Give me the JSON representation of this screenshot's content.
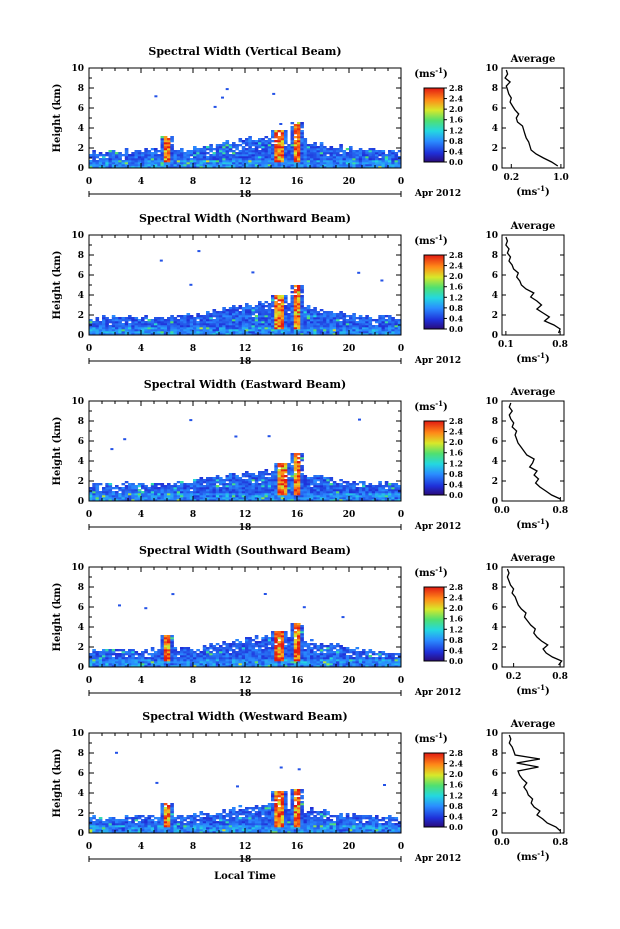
{
  "chart_data": [
    {
      "type": "heatmap",
      "title": "Spectral Width (Vertical Beam)",
      "ylabel": "Height (km)",
      "x_ticks": [
        "0",
        "4",
        "8",
        "12",
        "16",
        "20",
        "0"
      ],
      "y_ticks": [
        "0",
        "2",
        "4",
        "6",
        "8",
        "10"
      ],
      "xlim": [
        0,
        24
      ],
      "ylim": [
        0,
        10
      ],
      "date_day": "18",
      "date_month": "Apr 2012",
      "colorbar": {
        "unit": "(ms",
        "unit_exp": "-1",
        "unit_close": ")",
        "ticks": [
          "0.0",
          "0.4",
          "0.8",
          "1.2",
          "1.6",
          "2.0",
          "2.4",
          "2.8"
        ],
        "range": [
          0,
          2.8
        ]
      },
      "average": {
        "title": "Average",
        "xlabel": "(ms",
        "xlabel_exp": "-1",
        "xlabel_close": ")",
        "x_ticks": [
          "0.2",
          "1.0"
        ],
        "y_ticks": [
          "0",
          "2",
          "4",
          "6",
          "8",
          "10"
        ],
        "xlim": [
          0.05,
          1.05
        ],
        "ylim": [
          0,
          10
        ],
        "height": [
          0.2,
          0.6,
          1.0,
          1.4,
          1.8,
          2.2,
          2.6,
          3.0,
          3.4,
          3.8,
          4.2,
          4.6,
          5.0,
          5.4,
          5.8,
          6.2,
          6.6,
          7.0,
          7.4,
          7.8,
          8.2,
          8.6,
          9.0,
          9.4,
          9.8
        ],
        "value": [
          0.95,
          0.85,
          0.72,
          0.6,
          0.52,
          0.5,
          0.48,
          0.44,
          0.42,
          0.4,
          0.38,
          0.3,
          0.28,
          0.32,
          0.26,
          0.22,
          0.18,
          0.2,
          0.16,
          0.14,
          0.12,
          0.18,
          0.1,
          0.14,
          0.12
        ]
      },
      "field": {
        "top_km": 3.0,
        "events": [
          [
            6,
            3.2
          ],
          [
            14.6,
            3.8
          ],
          [
            16,
            4.6
          ]
        ]
      }
    },
    {
      "type": "heatmap",
      "title": "Spectral Width (Northward Beam)",
      "ylabel": "Height (km)",
      "x_ticks": [
        "0",
        "4",
        "8",
        "12",
        "16",
        "20",
        "0"
      ],
      "y_ticks": [
        "0",
        "2",
        "4",
        "6",
        "8",
        "10"
      ],
      "xlim": [
        0,
        24
      ],
      "ylim": [
        0,
        10
      ],
      "date_day": "18",
      "date_month": "Apr 2012",
      "colorbar": {
        "unit": "(ms",
        "unit_exp": "-1",
        "unit_close": ")",
        "ticks": [
          "0.0",
          "0.4",
          "0.8",
          "1.2",
          "1.6",
          "2.0",
          "2.4",
          "2.8"
        ],
        "range": [
          0,
          2.8
        ]
      },
      "average": {
        "title": "Average",
        "xlabel": "(ms",
        "xlabel_exp": "-1",
        "xlabel_close": ")",
        "x_ticks": [
          "0.1",
          "0.8"
        ],
        "y_ticks": [
          "0",
          "2",
          "4",
          "6",
          "8",
          "10"
        ],
        "xlim": [
          0.05,
          0.85
        ],
        "ylim": [
          0,
          10
        ],
        "height": [
          0.2,
          0.6,
          1.0,
          1.4,
          1.8,
          2.2,
          2.6,
          3.0,
          3.4,
          3.8,
          4.2,
          4.6,
          5.0,
          5.4,
          5.8,
          6.2,
          6.6,
          7.0,
          7.4,
          7.8,
          8.2,
          8.6,
          9.0,
          9.4,
          9.8
        ],
        "value": [
          0.78,
          0.8,
          0.72,
          0.6,
          0.66,
          0.58,
          0.5,
          0.56,
          0.5,
          0.42,
          0.46,
          0.36,
          0.3,
          0.28,
          0.24,
          0.26,
          0.2,
          0.18,
          0.14,
          0.16,
          0.12,
          0.14,
          0.1,
          0.12,
          0.1
        ]
      },
      "field": {
        "top_km": 3.2,
        "events": [
          [
            14.6,
            4.0
          ],
          [
            16,
            5.0
          ]
        ]
      }
    },
    {
      "type": "heatmap",
      "title": "Spectral Width (Eastward Beam)",
      "ylabel": "Height (km)",
      "x_ticks": [
        "0",
        "4",
        "8",
        "12",
        "16",
        "20",
        "0"
      ],
      "y_ticks": [
        "0",
        "2",
        "4",
        "6",
        "8",
        "10"
      ],
      "xlim": [
        0,
        24
      ],
      "ylim": [
        0,
        10
      ],
      "date_day": "18",
      "date_month": "Apr 2012",
      "colorbar": {
        "unit": "(ms",
        "unit_exp": "-1",
        "unit_close": ")",
        "ticks": [
          "0.0",
          "0.4",
          "0.8",
          "1.2",
          "1.6",
          "2.0",
          "2.4",
          "2.8"
        ],
        "range": [
          0,
          2.8
        ]
      },
      "average": {
        "title": "Average",
        "xlabel": "(ms",
        "xlabel_exp": "-1",
        "xlabel_close": ")",
        "x_ticks": [
          "0.0",
          "0.8"
        ],
        "y_ticks": [
          "0",
          "2",
          "4",
          "6",
          "8",
          "10"
        ],
        "xlim": [
          0.0,
          0.85
        ],
        "ylim": [
          0,
          10
        ],
        "height": [
          0.2,
          0.6,
          1.0,
          1.4,
          1.8,
          2.2,
          2.6,
          3.0,
          3.4,
          3.8,
          4.2,
          4.6,
          5.0,
          5.4,
          5.8,
          6.2,
          6.6,
          7.0,
          7.4,
          7.8,
          8.2,
          8.6,
          9.0,
          9.4,
          9.8
        ],
        "value": [
          0.8,
          0.68,
          0.6,
          0.52,
          0.46,
          0.5,
          0.44,
          0.48,
          0.38,
          0.42,
          0.44,
          0.34,
          0.3,
          0.26,
          0.22,
          0.2,
          0.18,
          0.2,
          0.14,
          0.16,
          0.12,
          0.1,
          0.14,
          0.1,
          0.12
        ]
      },
      "field": {
        "top_km": 3.0,
        "events": [
          [
            14.8,
            3.8
          ],
          [
            16,
            4.8
          ]
        ]
      }
    },
    {
      "type": "heatmap",
      "title": "Spectral Width (Southward Beam)",
      "ylabel": "Height (km)",
      "x_ticks": [
        "0",
        "4",
        "8",
        "12",
        "16",
        "20",
        "0"
      ],
      "y_ticks": [
        "0",
        "2",
        "4",
        "6",
        "8",
        "10"
      ],
      "xlim": [
        0,
        24
      ],
      "ylim": [
        0,
        10
      ],
      "date_day": "18",
      "date_month": "Apr 2012",
      "colorbar": {
        "unit": "(ms",
        "unit_exp": "-1",
        "unit_close": ")",
        "ticks": [
          "0.0",
          "0.4",
          "0.8",
          "1.2",
          "1.6",
          "2.0",
          "2.4",
          "2.8"
        ],
        "range": [
          0,
          2.8
        ]
      },
      "average": {
        "title": "Average",
        "xlabel": "(ms",
        "xlabel_exp": "-1",
        "xlabel_close": ")",
        "x_ticks": [
          "0.2",
          "0.8"
        ],
        "y_ticks": [
          "0",
          "2",
          "4",
          "6",
          "8",
          "10"
        ],
        "xlim": [
          0.05,
          0.85
        ],
        "ylim": [
          0,
          10
        ],
        "height": [
          0.2,
          0.6,
          1.0,
          1.4,
          1.8,
          2.2,
          2.6,
          3.0,
          3.4,
          3.8,
          4.2,
          4.6,
          5.0,
          5.4,
          5.8,
          6.2,
          6.6,
          7.0,
          7.4,
          7.8,
          8.2,
          8.6,
          9.0,
          9.4,
          9.8
        ],
        "value": [
          0.78,
          0.82,
          0.7,
          0.62,
          0.58,
          0.64,
          0.56,
          0.5,
          0.46,
          0.48,
          0.42,
          0.38,
          0.34,
          0.36,
          0.3,
          0.26,
          0.24,
          0.22,
          0.18,
          0.2,
          0.16,
          0.14,
          0.12,
          0.14,
          0.12
        ]
      },
      "field": {
        "top_km": 3.0,
        "events": [
          [
            6,
            3.2
          ],
          [
            14.6,
            3.6
          ],
          [
            16,
            4.4
          ]
        ]
      }
    },
    {
      "type": "heatmap",
      "title": "Spectral Width (Westward Beam)",
      "ylabel": "Height (km)",
      "xlabel": "Local Time",
      "x_ticks": [
        "0",
        "4",
        "8",
        "12",
        "16",
        "20",
        "0"
      ],
      "y_ticks": [
        "0",
        "2",
        "4",
        "6",
        "8",
        "10"
      ],
      "xlim": [
        0,
        24
      ],
      "ylim": [
        0,
        10
      ],
      "date_day": "18",
      "date_month": "Apr 2012",
      "colorbar": {
        "unit": "(ms",
        "unit_exp": "-1",
        "unit_close": ")",
        "ticks": [
          "0.0",
          "0.4",
          "0.8",
          "1.2",
          "1.6",
          "2.0",
          "2.4",
          "2.8"
        ],
        "range": [
          0,
          2.8
        ]
      },
      "average": {
        "title": "Average",
        "xlabel": "(ms",
        "xlabel_exp": "-1",
        "xlabel_close": ")",
        "x_ticks": [
          "0.0",
          "0.8"
        ],
        "y_ticks": [
          "0",
          "2",
          "4",
          "6",
          "8",
          "10"
        ],
        "xlim": [
          0.0,
          0.85
        ],
        "ylim": [
          0,
          10
        ],
        "height": [
          0.2,
          0.6,
          1.0,
          1.4,
          1.8,
          2.2,
          2.6,
          3.0,
          3.4,
          3.8,
          4.2,
          4.6,
          5.0,
          5.4,
          5.8,
          6.2,
          6.6,
          7.0,
          7.4,
          7.8,
          8.2,
          8.6,
          9.0,
          9.4,
          9.8
        ],
        "value": [
          0.8,
          0.74,
          0.62,
          0.56,
          0.48,
          0.52,
          0.44,
          0.4,
          0.42,
          0.36,
          0.34,
          0.3,
          0.34,
          0.28,
          0.24,
          0.22,
          0.5,
          0.2,
          0.52,
          0.18,
          0.16,
          0.14,
          0.1,
          0.12,
          0.1
        ]
      },
      "field": {
        "top_km": 2.8,
        "events": [
          [
            6,
            3.0
          ],
          [
            14.6,
            4.2
          ],
          [
            16,
            4.4
          ]
        ]
      }
    }
  ]
}
